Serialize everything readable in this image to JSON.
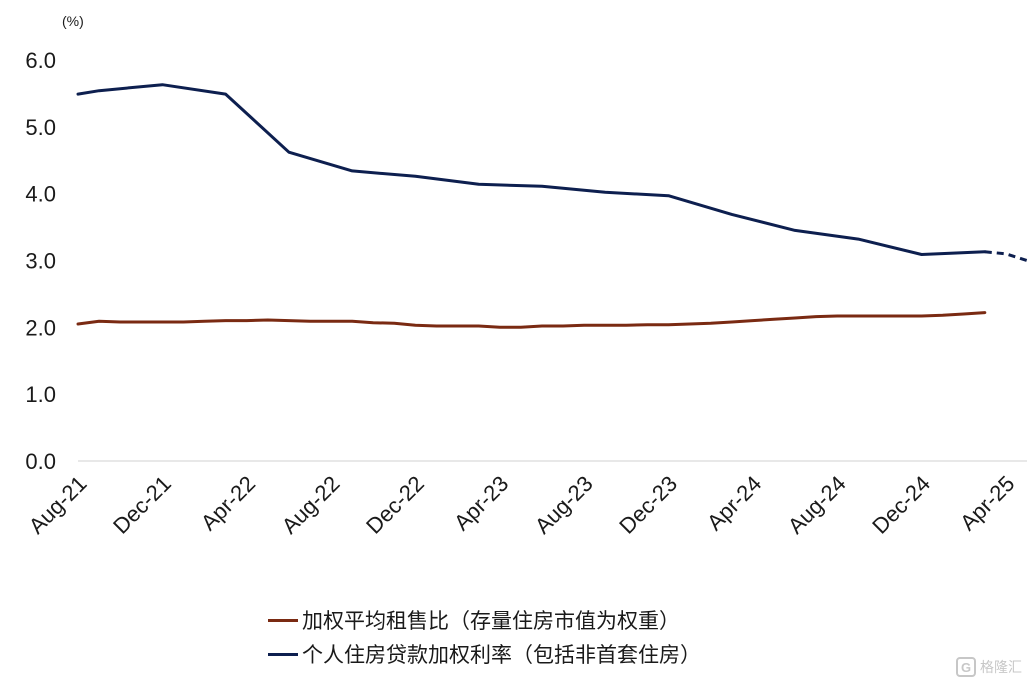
{
  "chart_data": {
    "type": "line",
    "title": "",
    "xlabel": "",
    "ylabel": "",
    "unit_label": "(%)",
    "ylim": [
      0,
      6
    ],
    "yticks": [
      "0.0",
      "1.0",
      "2.0",
      "3.0",
      "4.0",
      "5.0",
      "6.0"
    ],
    "x_tick_labels": [
      "Aug-21",
      "Dec-21",
      "Apr-22",
      "Aug-22",
      "Dec-22",
      "Apr-23",
      "Aug-23",
      "Dec-23",
      "Apr-24",
      "Aug-24",
      "Dec-24",
      "Apr-25"
    ],
    "grid": false,
    "legend_position": "bottom",
    "series": [
      {
        "name": "加权平均租售比（存量住房市值为权重）",
        "color": "#7a2a12",
        "x": [
          "2021-08",
          "2021-09",
          "2021-10",
          "2021-11",
          "2021-12",
          "2022-01",
          "2022-02",
          "2022-03",
          "2022-04",
          "2022-05",
          "2022-06",
          "2022-07",
          "2022-08",
          "2022-09",
          "2022-10",
          "2022-11",
          "2022-12",
          "2023-01",
          "2023-02",
          "2023-03",
          "2023-04",
          "2023-05",
          "2023-06",
          "2023-07",
          "2023-08",
          "2023-09",
          "2023-10",
          "2023-11",
          "2023-12",
          "2024-01",
          "2024-02",
          "2024-03",
          "2024-04",
          "2024-05",
          "2024-06",
          "2024-07",
          "2024-08",
          "2024-09",
          "2024-10",
          "2024-11",
          "2024-12",
          "2025-01",
          "2025-02",
          "2025-03"
        ],
        "values": [
          2.05,
          2.09,
          2.08,
          2.08,
          2.08,
          2.08,
          2.09,
          2.1,
          2.1,
          2.11,
          2.1,
          2.09,
          2.09,
          2.09,
          2.07,
          2.06,
          2.03,
          2.02,
          2.02,
          2.02,
          2.0,
          2.0,
          2.02,
          2.02,
          2.03,
          2.03,
          2.03,
          2.04,
          2.04,
          2.05,
          2.06,
          2.08,
          2.1,
          2.12,
          2.14,
          2.16,
          2.17,
          2.17,
          2.17,
          2.17,
          2.17,
          2.18,
          2.2,
          2.22
        ]
      },
      {
        "name": "个人住房贷款加权利率（包括非首套住房）",
        "color": "#0d1f4f",
        "x": [
          "2021-08",
          "2021-09",
          "2021-12",
          "2022-03",
          "2022-06",
          "2022-09",
          "2022-12",
          "2023-03",
          "2023-06",
          "2023-09",
          "2023-12",
          "2024-03",
          "2024-06",
          "2024-09",
          "2024-12",
          "2025-03"
        ],
        "values": [
          5.49,
          5.54,
          5.63,
          5.49,
          4.62,
          4.34,
          4.26,
          4.14,
          4.11,
          4.02,
          3.97,
          3.69,
          3.45,
          3.32,
          3.09,
          3.13
        ],
        "projected_x": [
          "2025-03",
          "2025-04",
          "2025-05"
        ],
        "projected_values": [
          3.13,
          3.1,
          3.0
        ]
      }
    ]
  },
  "watermark": {
    "logo_glyph": "G",
    "text": "格隆汇"
  }
}
